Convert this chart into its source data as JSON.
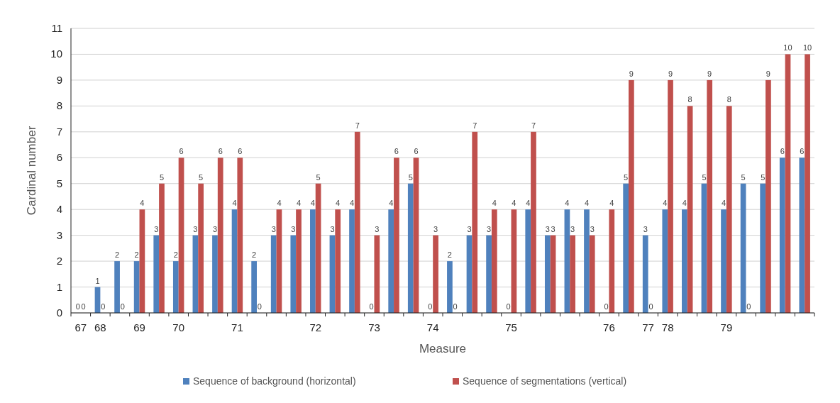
{
  "chart_data": {
    "type": "bar",
    "xlabel": "Measure",
    "ylabel": "Cardinal number",
    "categories": [
      "67",
      "68",
      null,
      "69",
      null,
      "70",
      null,
      null,
      "71",
      null,
      null,
      null,
      "72",
      null,
      null,
      "73",
      null,
      null,
      "74",
      null,
      null,
      null,
      "75",
      null,
      null,
      null,
      null,
      "76",
      null,
      "77",
      "78",
      null,
      null,
      "79",
      null,
      null,
      null,
      null
    ],
    "series": [
      {
        "name": "Sequence of background (horizontal)",
        "color": "#4f81bd",
        "values": [
          0,
          1,
          2,
          2,
          3,
          2,
          3,
          3,
          4,
          2,
          3,
          3,
          4,
          3,
          4,
          0,
          4,
          5,
          0,
          2,
          3,
          3,
          0,
          4,
          3,
          4,
          4,
          0,
          5,
          3,
          4,
          4,
          5,
          4,
          5,
          5,
          6,
          6
        ]
      },
      {
        "name": "Sequence of segmentations (vertical)",
        "color": "#c0504d",
        "values": [
          0,
          0,
          0,
          4,
          5,
          6,
          5,
          6,
          6,
          0,
          4,
          4,
          5,
          4,
          7,
          3,
          6,
          6,
          3,
          0,
          7,
          4,
          4,
          7,
          3,
          3,
          3,
          4,
          9,
          0,
          9,
          8,
          9,
          8,
          0,
          9,
          10,
          10
        ]
      }
    ],
    "ylim": [
      0,
      11
    ],
    "yticks": [
      0,
      1,
      2,
      3,
      4,
      5,
      6,
      7,
      8,
      9,
      10,
      11
    ],
    "grid": "y",
    "data_labels": true,
    "legend": "bottom"
  }
}
